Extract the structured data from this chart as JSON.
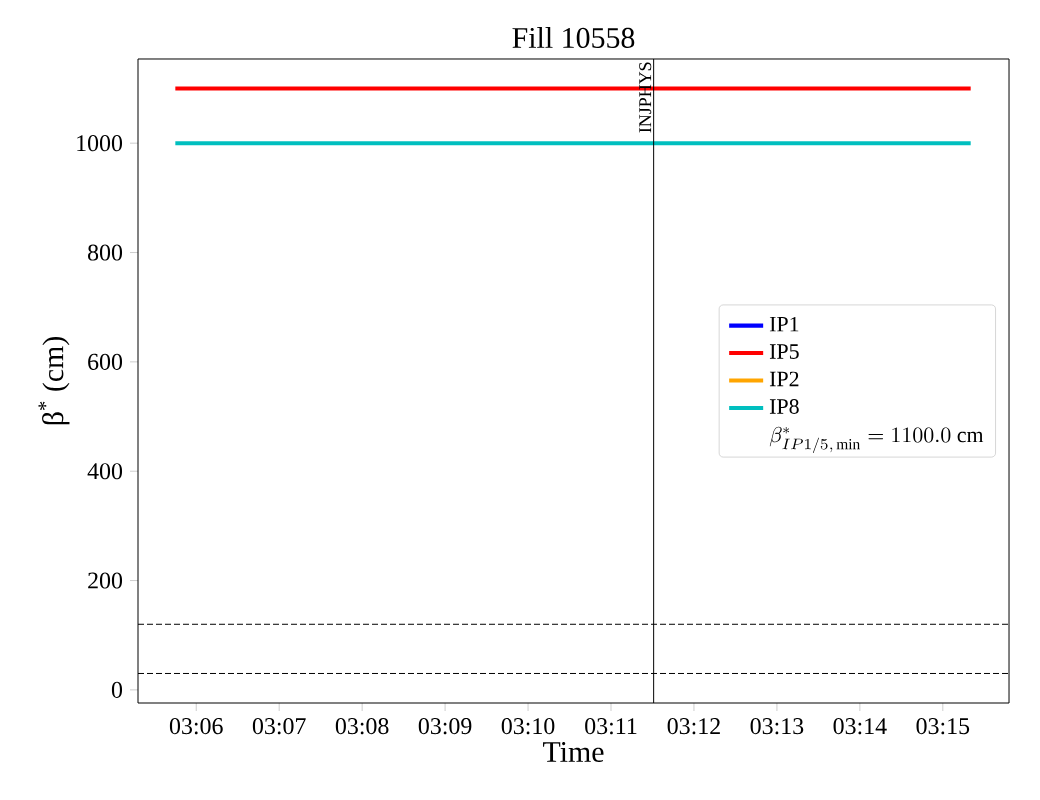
{
  "chart_data": {
    "type": "line",
    "title": "Fill 10558",
    "xlabel": "Time",
    "ylabel": "β$^{*}$ (cm)",
    "x": [
      3.0958,
      3.2556
    ],
    "series": [
      {
        "name": "IP1",
        "color": "#0000ff",
        "values": [
          null,
          null
        ]
      },
      {
        "name": "IP5",
        "color": "#ff0000",
        "values": [
          1100,
          1100
        ]
      },
      {
        "name": "IP2",
        "color": "#ffa500",
        "values": [
          null,
          null
        ]
      },
      {
        "name": "IP8",
        "color": "#00bfbf",
        "values": [
          1000,
          1000
        ]
      }
    ],
    "annotations": [
      "\\beta^{*}_{IP1/5,\\,\\mathrm{min}} = 1100.0\\ \\mathrm{cm}"
    ],
    "xlim": [
      3.0883,
      3.2633
    ],
    "ylim": [
      -24,
      1154
    ],
    "xticks": [
      {
        "value": 3.1,
        "label": "03:06"
      },
      {
        "value": 3.116667,
        "label": "03:07"
      },
      {
        "value": 3.133333,
        "label": "03:08"
      },
      {
        "value": 3.15,
        "label": "03:09"
      },
      {
        "value": 3.166667,
        "label": "03:10"
      },
      {
        "value": 3.183333,
        "label": "03:11"
      },
      {
        "value": 3.2,
        "label": "03:12"
      },
      {
        "value": 3.216667,
        "label": "03:13"
      },
      {
        "value": 3.233333,
        "label": "03:14"
      },
      {
        "value": 3.25,
        "label": "03:15"
      }
    ],
    "yticks": [
      0,
      200,
      400,
      600,
      800,
      1000
    ],
    "ref_lines": [
      {
        "axis": "x",
        "value": 3.1919,
        "label": "INJPHYS",
        "color": "#000000",
        "line_style": "solid"
      },
      {
        "axis": "y",
        "value": 120,
        "color": "#000000",
        "line_style": "dashed"
      },
      {
        "axis": "y",
        "value": 30,
        "color": "#000000",
        "line_style": "dashed"
      }
    ],
    "legend": "right",
    "grid": false,
    "marker": "none",
    "line_style": "solid"
  }
}
